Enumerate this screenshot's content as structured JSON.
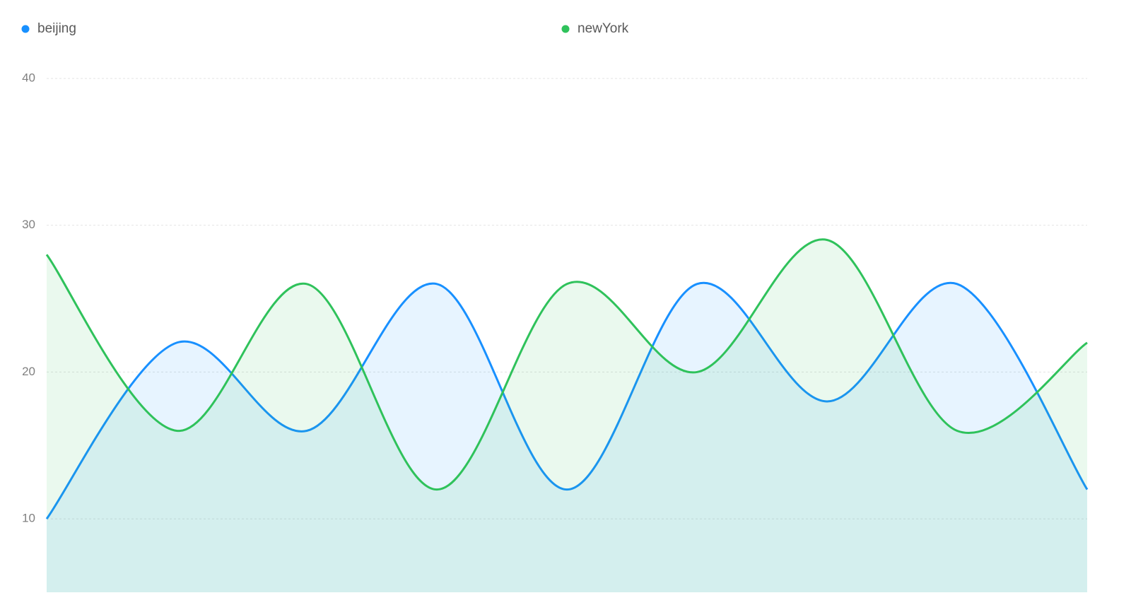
{
  "chart_data": {
    "type": "line",
    "categories": [
      null,
      null,
      null,
      null,
      null,
      null,
      null,
      null,
      null
    ],
    "series": [
      {
        "name": "beijing",
        "color": "#1890ff",
        "values": [
          10,
          22,
          16,
          26,
          12,
          26,
          18,
          26,
          12
        ]
      },
      {
        "name": "newYork",
        "color": "#2fc25b",
        "values": [
          28,
          16,
          26,
          12,
          26,
          20,
          29,
          16,
          22
        ]
      }
    ],
    "ylim": [
      5,
      40
    ],
    "yticks": [
      10,
      20,
      30,
      40
    ],
    "grid": true,
    "smooth": true,
    "area": true,
    "legend": "top"
  }
}
